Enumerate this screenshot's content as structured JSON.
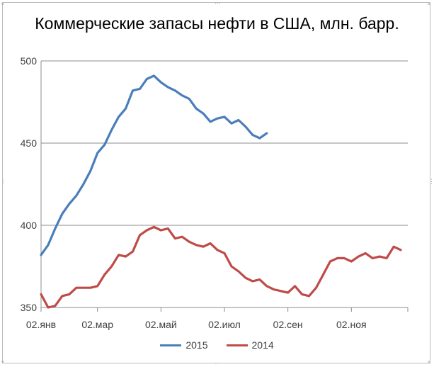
{
  "chart_data": {
    "type": "line",
    "title": "Коммерческие запасы нефти в США, млн. барр.",
    "xlabel": "",
    "ylabel": "",
    "ylim": [
      350,
      500
    ],
    "yticks": [
      350,
      400,
      450,
      500
    ],
    "xticks": [
      {
        "x": 0,
        "label": "02.янв"
      },
      {
        "x": 8,
        "label": "02.мар"
      },
      {
        "x": 17,
        "label": "02.май"
      },
      {
        "x": 26,
        "label": "02.июл"
      },
      {
        "x": 35,
        "label": "02.сен"
      },
      {
        "x": 44,
        "label": "02.ноя"
      }
    ],
    "xlim": [
      0,
      52
    ],
    "grid": true,
    "legend_position": "bottom",
    "series": [
      {
        "name": "2015",
        "color": "#4a7ebb",
        "values": [
          382,
          388,
          398,
          407,
          413,
          418,
          425,
          433,
          444,
          449,
          458,
          466,
          471,
          482,
          483,
          489,
          491,
          487,
          484,
          482,
          479,
          477,
          471,
          468,
          463,
          465,
          466,
          462,
          464,
          460,
          455,
          453,
          456
        ]
      },
      {
        "name": "2014",
        "color": "#be4b48",
        "values": [
          358,
          350,
          351,
          357,
          358,
          362,
          362,
          362,
          363,
          370,
          375,
          382,
          381,
          384,
          394,
          397,
          399,
          397,
          398,
          392,
          393,
          390,
          388,
          387,
          389,
          385,
          383,
          375,
          372,
          368,
          366,
          367,
          363,
          361,
          360,
          359,
          363,
          358,
          357,
          362,
          370,
          378,
          380,
          380,
          378,
          381,
          383,
          380,
          381,
          380,
          387,
          385
        ]
      }
    ]
  }
}
